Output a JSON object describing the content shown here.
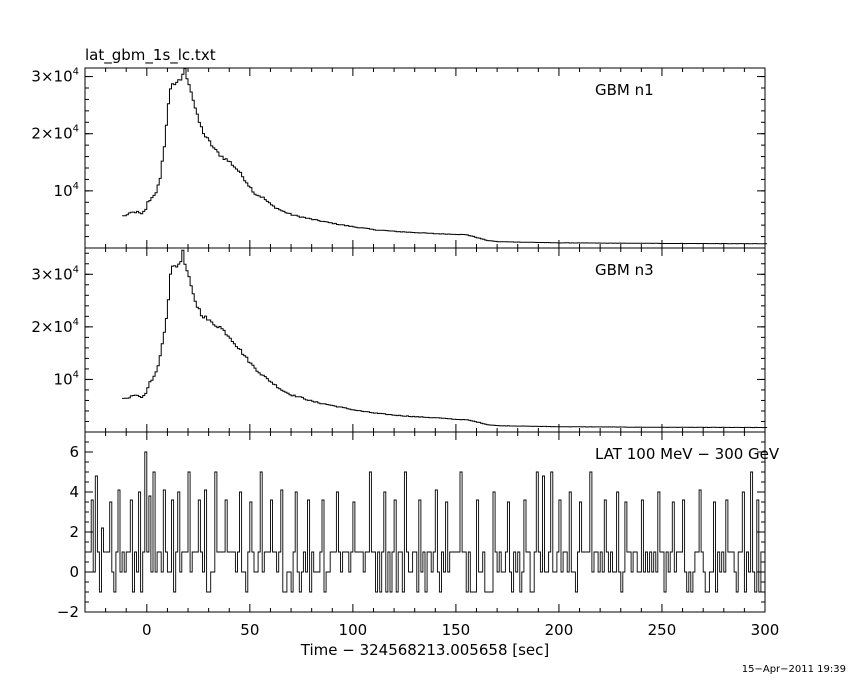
{
  "file_title": "lat_gbm_1s_lc.txt",
  "xlabel": "Time − 324568213.005658 [sec]",
  "date_stamp": "15−Apr−2011 19:39",
  "chart_data": [
    {
      "type": "line",
      "name": "GBM n1",
      "xlim": [
        -30,
        300
      ],
      "ylim": [
        0,
        31500
      ],
      "yticks": [
        {
          "value": 10000,
          "mant": "",
          "exp": "4"
        },
        {
          "value": 20000,
          "mant": "2×",
          "exp": "4"
        },
        {
          "value": 30000,
          "mant": "3×",
          "exp": "4"
        }
      ],
      "points": [
        [
          -12,
          5600
        ],
        [
          -10,
          5800
        ],
        [
          -8,
          6200
        ],
        [
          -5,
          6300
        ],
        [
          -3,
          5900
        ],
        [
          -1,
          6800
        ],
        [
          0,
          8000
        ],
        [
          2,
          8800
        ],
        [
          4,
          9800
        ],
        [
          6,
          12000
        ],
        [
          8,
          18000
        ],
        [
          10,
          25000
        ],
        [
          11,
          28000
        ],
        [
          12,
          29000
        ],
        [
          14,
          28500
        ],
        [
          16,
          29500
        ],
        [
          17,
          30500
        ],
        [
          18,
          31000
        ],
        [
          20,
          29000
        ],
        [
          22,
          26000
        ],
        [
          24,
          23000
        ],
        [
          26,
          21000
        ],
        [
          28,
          19500
        ],
        [
          30,
          18500
        ],
        [
          33,
          17000
        ],
        [
          36,
          16000
        ],
        [
          40,
          15000
        ],
        [
          44,
          13500
        ],
        [
          48,
          11500
        ],
        [
          52,
          9500
        ],
        [
          56,
          8800
        ],
        [
          60,
          7500
        ],
        [
          65,
          6500
        ],
        [
          70,
          5800
        ],
        [
          80,
          5000
        ],
        [
          90,
          4300
        ],
        [
          100,
          3700
        ],
        [
          110,
          3200
        ],
        [
          120,
          2900
        ],
        [
          130,
          2700
        ],
        [
          140,
          2500
        ],
        [
          150,
          2400
        ],
        [
          155,
          2300
        ],
        [
          160,
          1800
        ],
        [
          165,
          1300
        ],
        [
          170,
          1100
        ],
        [
          200,
          900
        ],
        [
          250,
          800
        ],
        [
          300,
          750
        ]
      ]
    },
    {
      "type": "line",
      "name": "GBM n3",
      "xlim": [
        -30,
        300
      ],
      "ylim": [
        0,
        35000
      ],
      "yticks": [
        {
          "value": 10000,
          "mant": "",
          "exp": "4"
        },
        {
          "value": 20000,
          "mant": "2×",
          "exp": "4"
        },
        {
          "value": 30000,
          "mant": "3×",
          "exp": "4"
        }
      ],
      "points": [
        [
          -12,
          6400
        ],
        [
          -9,
          6600
        ],
        [
          -6,
          7000
        ],
        [
          -3,
          6500
        ],
        [
          -1,
          7200
        ],
        [
          1,
          9500
        ],
        [
          3,
          10500
        ],
        [
          5,
          12500
        ],
        [
          7,
          16500
        ],
        [
          8,
          19000
        ],
        [
          10,
          25000
        ],
        [
          11,
          30500
        ],
        [
          12,
          32000
        ],
        [
          13,
          31000
        ],
        [
          15,
          32000
        ],
        [
          16,
          33000
        ],
        [
          17,
          34000
        ],
        [
          18,
          32000
        ],
        [
          20,
          29000
        ],
        [
          22,
          26000
        ],
        [
          24,
          24000
        ],
        [
          26,
          22500
        ],
        [
          30,
          21000
        ],
        [
          35,
          20000
        ],
        [
          40,
          18000
        ],
        [
          45,
          15500
        ],
        [
          50,
          13000
        ],
        [
          55,
          11000
        ],
        [
          60,
          9500
        ],
        [
          65,
          8000
        ],
        [
          70,
          7000
        ],
        [
          75,
          6500
        ],
        [
          80,
          5800
        ],
        [
          90,
          5000
        ],
        [
          100,
          4200
        ],
        [
          110,
          3600
        ],
        [
          120,
          3200
        ],
        [
          130,
          2900
        ],
        [
          140,
          2700
        ],
        [
          150,
          2400
        ],
        [
          155,
          2300
        ],
        [
          160,
          1900
        ],
        [
          165,
          1400
        ],
        [
          170,
          1200
        ],
        [
          200,
          1000
        ],
        [
          250,
          900
        ],
        [
          300,
          850
        ]
      ]
    },
    {
      "type": "line",
      "name": "LAT 100 MeV − 300 GeV",
      "xlim": [
        -30,
        300
      ],
      "ylim": [
        -2,
        7
      ],
      "yticks": [
        {
          "value": -2,
          "label": "−2"
        },
        {
          "value": 0,
          "label": "0"
        },
        {
          "value": 2,
          "label": "2"
        },
        {
          "value": 4,
          "label": "4"
        },
        {
          "value": 6,
          "label": "6"
        }
      ],
      "peaks": [
        [
          -27,
          3.6
        ],
        [
          -25,
          4.8
        ],
        [
          -22,
          2.2
        ],
        [
          -18,
          3.5
        ],
        [
          -14,
          4.1
        ],
        [
          -8,
          3.6
        ],
        [
          -4,
          4.0
        ],
        [
          -1,
          6.0
        ],
        [
          1,
          3.8
        ],
        [
          3,
          5.0
        ],
        [
          8,
          4.1
        ],
        [
          12,
          3.6
        ],
        [
          15,
          4.0
        ],
        [
          20,
          5.0
        ],
        [
          25,
          3.6
        ],
        [
          28,
          4.1
        ],
        [
          33,
          5.0
        ],
        [
          38,
          3.6
        ],
        [
          45,
          4.0
        ],
        [
          50,
          3.5
        ],
        [
          55,
          5.0
        ],
        [
          60,
          3.6
        ],
        [
          65,
          4.1
        ],
        [
          72,
          4.0
        ],
        [
          78,
          3.6
        ],
        [
          85,
          3.6
        ],
        [
          92,
          4.0
        ],
        [
          100,
          3.5
        ],
        [
          108,
          5.0
        ],
        [
          115,
          4.0
        ],
        [
          120,
          3.6
        ],
        [
          125,
          5.0
        ],
        [
          132,
          3.6
        ],
        [
          140,
          4.1
        ],
        [
          145,
          3.5
        ],
        [
          152,
          5.0
        ],
        [
          160,
          3.6
        ],
        [
          168,
          4.0
        ],
        [
          175,
          3.5
        ],
        [
          183,
          3.6
        ],
        [
          189,
          5.0
        ],
        [
          192,
          4.8
        ],
        [
          196,
          5.0
        ],
        [
          200,
          3.6
        ],
        [
          205,
          4.0
        ],
        [
          210,
          3.5
        ],
        [
          215,
          5.0
        ],
        [
          222,
          3.6
        ],
        [
          228,
          4.0
        ],
        [
          232,
          3.5
        ],
        [
          240,
          3.6
        ],
        [
          248,
          4.0
        ],
        [
          255,
          3.5
        ],
        [
          260,
          3.6
        ],
        [
          268,
          4.1
        ],
        [
          275,
          3.5
        ],
        [
          281,
          3.6
        ],
        [
          289,
          4.0
        ],
        [
          293,
          5.0
        ],
        [
          296,
          3.6
        ]
      ]
    }
  ]
}
